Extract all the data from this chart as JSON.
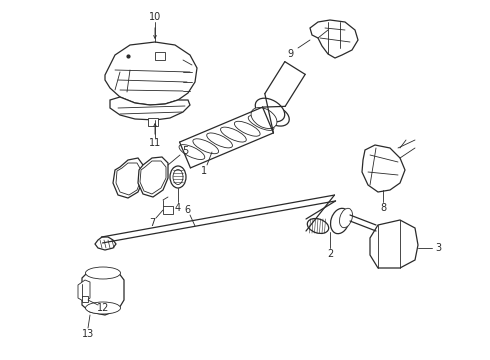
{
  "bg_color": "#ffffff",
  "line_color": "#2a2a2a",
  "figsize": [
    4.9,
    3.6
  ],
  "dpi": 100
}
